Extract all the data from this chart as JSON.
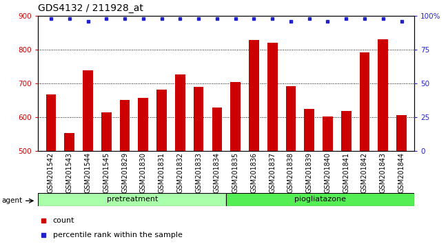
{
  "title": "GDS4132 / 211928_at",
  "samples": [
    "GSM201542",
    "GSM201543",
    "GSM201544",
    "GSM201545",
    "GSM201829",
    "GSM201830",
    "GSM201831",
    "GSM201832",
    "GSM201833",
    "GSM201834",
    "GSM201835",
    "GSM201836",
    "GSM201837",
    "GSM201838",
    "GSM201839",
    "GSM201840",
    "GSM201841",
    "GSM201842",
    "GSM201843",
    "GSM201844"
  ],
  "bar_values": [
    667,
    554,
    740,
    615,
    652,
    657,
    682,
    727,
    690,
    630,
    705,
    828,
    820,
    693,
    625,
    603,
    620,
    793,
    830,
    607
  ],
  "percentile_values": [
    98,
    98,
    96,
    98,
    98,
    98,
    98,
    98,
    98,
    98,
    98,
    98,
    98,
    96,
    98,
    96,
    98,
    98,
    98,
    96
  ],
  "bar_color": "#cc0000",
  "dot_color": "#2222cc",
  "ylim_left": [
    500,
    900
  ],
  "ylim_right": [
    0,
    100
  ],
  "yticks_left": [
    500,
    600,
    700,
    800,
    900
  ],
  "yticks_right": [
    0,
    25,
    50,
    75,
    100
  ],
  "group1_label": "pretreatment",
  "group1_count": 10,
  "group2_label": "piogliatazone",
  "group2_count": 10,
  "group1_color": "#aaffaa",
  "group2_color": "#55ee55",
  "agent_label": "agent",
  "legend_count_label": "count",
  "legend_percentile_label": "percentile rank within the sample",
  "title_fontsize": 10,
  "tick_label_fontsize": 7,
  "axis_label_color_left": "#cc0000",
  "axis_label_color_right": "#2222cc",
  "background_color": "#cccccc"
}
